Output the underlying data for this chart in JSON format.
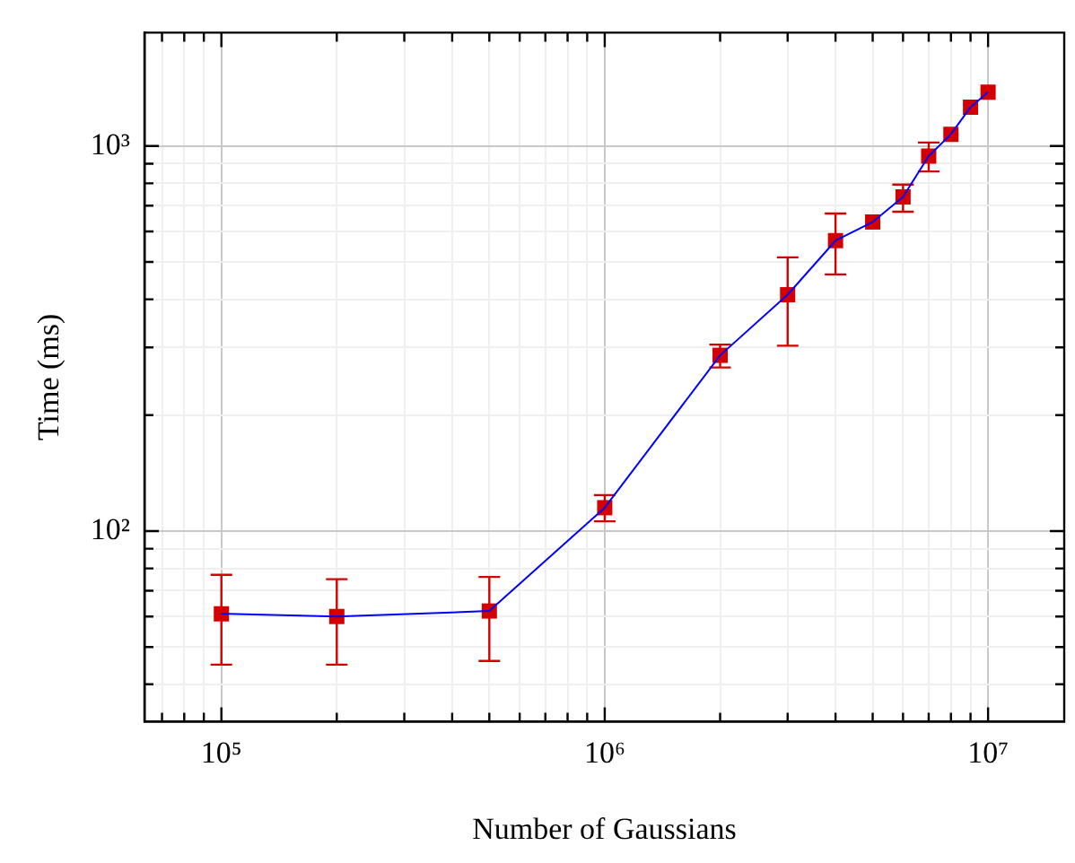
{
  "chart_data": {
    "type": "line",
    "xlabel": "Number of Gaussians",
    "ylabel": "Time (ms)",
    "log": "xy",
    "grid": true,
    "legend": false,
    "marker": "square",
    "line_style": "solid",
    "x": [
      100000,
      200000,
      500000,
      1000000,
      2000000,
      3000000,
      4000000,
      5000000,
      6000000,
      7000000,
      8000000,
      9000000,
      10000000
    ],
    "series": [
      {
        "color": "#0000ff",
        "marker": "none",
        "values": [
          61,
          60,
          62,
          115,
          286,
          411,
          568,
          635,
          738,
          942,
          1073,
          1262,
          1380
        ]
      },
      {
        "type": "scatter",
        "color": "#d40000",
        "values": [
          61,
          60,
          62,
          115,
          286,
          411,
          568,
          635,
          738,
          942,
          1073,
          1262,
          1380
        ],
        "errors": [
          [
            45,
            77
          ],
          [
            45,
            75
          ],
          [
            46,
            76
          ],
          [
            106,
            124
          ],
          [
            266,
            305
          ],
          [
            303,
            514
          ],
          [
            464,
            668
          ],
          null,
          [
            675,
            794
          ],
          [
            859,
            1021
          ],
          null,
          null,
          null
        ]
      }
    ],
    "xlim": [
      63000,
      15800000
    ],
    "ylim": [
      32,
      1970
    ],
    "xticks": [
      {
        "value": 70000,
        "label": null
      },
      {
        "value": 80000,
        "label": null
      },
      {
        "value": 90000,
        "label": null
      },
      {
        "value": 100000,
        "label": "10⁵"
      },
      {
        "value": 200000,
        "label": null
      },
      {
        "value": 300000,
        "label": null
      },
      {
        "value": 400000,
        "label": null
      },
      {
        "value": 500000,
        "label": null
      },
      {
        "value": 600000,
        "label": null
      },
      {
        "value": 700000,
        "label": null
      },
      {
        "value": 800000,
        "label": null
      },
      {
        "value": 900000,
        "label": null
      },
      {
        "value": 1000000,
        "label": "10⁶"
      },
      {
        "value": 2000000,
        "label": null
      },
      {
        "value": 3000000,
        "label": null
      },
      {
        "value": 4000000,
        "label": null
      },
      {
        "value": 5000000,
        "label": null
      },
      {
        "value": 6000000,
        "label": null
      },
      {
        "value": 7000000,
        "label": null
      },
      {
        "value": 8000000,
        "label": null
      },
      {
        "value": 9000000,
        "label": null
      },
      {
        "value": 10000000,
        "label": "10⁷"
      }
    ],
    "yticks": [
      {
        "value": 40,
        "label": null
      },
      {
        "value": 50,
        "label": null
      },
      {
        "value": 60,
        "label": null
      },
      {
        "value": 70,
        "label": null
      },
      {
        "value": 80,
        "label": null
      },
      {
        "value": 90,
        "label": null
      },
      {
        "value": 100,
        "label": "10²"
      },
      {
        "value": 200,
        "label": null
      },
      {
        "value": 300,
        "label": null
      },
      {
        "value": 400,
        "label": null
      },
      {
        "value": 500,
        "label": null
      },
      {
        "value": 600,
        "label": null
      },
      {
        "value": 700,
        "label": null
      },
      {
        "value": 800,
        "label": null
      },
      {
        "value": 900,
        "label": null
      },
      {
        "value": 1000,
        "label": "10³"
      }
    ]
  }
}
